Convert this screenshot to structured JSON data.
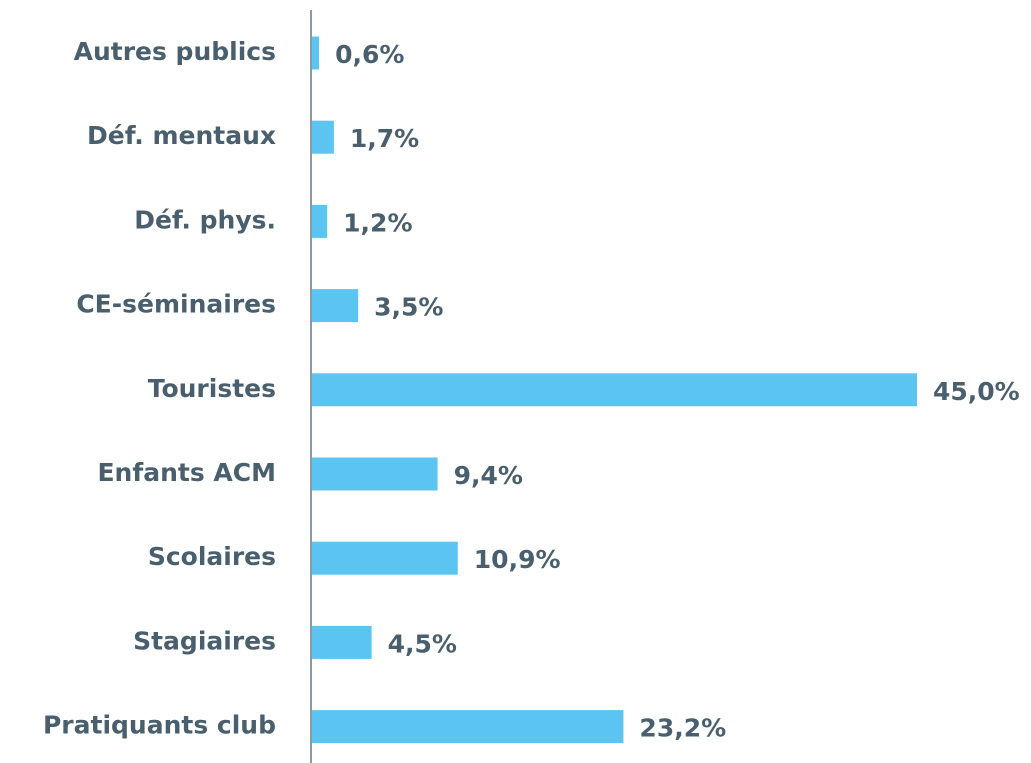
{
  "chart_data": {
    "type": "bar",
    "orientation": "horizontal",
    "categories": [
      "Autres publics",
      "Déf. mentaux",
      "Déf. phys.",
      "CE-séminaires",
      "Touristes",
      "Enfants ACM",
      "Scolaires",
      "Stagiaires",
      "Pratiquants club"
    ],
    "values": [
      0.6,
      1.7,
      1.2,
      3.5,
      45.0,
      9.4,
      10.9,
      4.5,
      23.2
    ],
    "value_labels": [
      "0,6%",
      "1,7%",
      "1,2%",
      "3,5%",
      "45,0%",
      "9,4%",
      "10,9%",
      "4,5%",
      "23,2%"
    ],
    "color": "#5bc4f1"
  }
}
